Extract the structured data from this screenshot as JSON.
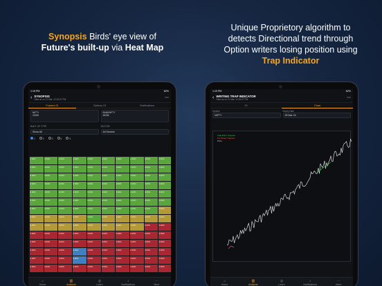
{
  "caption_left": {
    "w1": "Synopsis",
    "w2": "Birds' eye view of",
    "w3": "Future's built-up",
    "w4": "via",
    "w5": "Heat Map"
  },
  "caption_right": {
    "l1": "Unique Proprietory algorithm to",
    "l2": "detects Directional trend through",
    "l3": "Option writers losing position using",
    "l4": "Trap Indicator"
  },
  "status_bar": {
    "time": "1:19 PM",
    "date": "Fri 7 Mar",
    "battery": "62%"
  },
  "left_screen": {
    "title": "SYNOPSIS",
    "subtitle": "Data as on 21 Mar, 12:15:47 PM",
    "tabs": [
      {
        "label": "Futures OI",
        "active": true
      },
      {
        "label": "Options OI",
        "active": false
      },
      {
        "label": "Notifications",
        "active": false
      }
    ],
    "card1": {
      "name": "NIFTY",
      "sub": "22266"
    },
    "card2": {
      "name": "BANKNIFTY",
      "sub": "48256"
    },
    "filter_label": "BUILT UP TYPE",
    "filter2_label": "SECTOR",
    "filter_value": "Show All",
    "filter2_value": "All Sectors",
    "radios": [
      "1",
      "2",
      "3",
      "4",
      "5"
    ],
    "heatmap": [
      "g",
      "g",
      "g",
      "g",
      "g",
      "g",
      "g",
      "g",
      "g",
      "g",
      "g",
      "g",
      "g",
      "g",
      "g",
      "g",
      "g",
      "g",
      "g",
      "g",
      "g",
      "g",
      "g",
      "g",
      "g",
      "g",
      "g",
      "g",
      "g",
      "g",
      "g",
      "g",
      "g",
      "g",
      "g",
      "g",
      "g",
      "g",
      "g",
      "g",
      "g",
      "g",
      "g",
      "g",
      "g",
      "g",
      "g",
      "g",
      "g",
      "g",
      "g",
      "g",
      "g",
      "g",
      "g",
      "g",
      "g",
      "g",
      "g",
      "g",
      "g",
      "g",
      "g",
      "g",
      "g",
      "g",
      "g",
      "g",
      "g",
      "y",
      "y",
      "y",
      "y",
      "y",
      "g",
      "y",
      "y",
      "y",
      "y",
      "y",
      "y",
      "y",
      "y",
      "y",
      "y",
      "y",
      "y",
      "y",
      "r",
      "r",
      "r",
      "r",
      "r",
      "r",
      "r",
      "r",
      "r",
      "r",
      "r",
      "r",
      "r",
      "r",
      "r",
      "r",
      "r",
      "r",
      "r",
      "r",
      "r",
      "r",
      "r",
      "r",
      "r",
      "b",
      "r",
      "r",
      "r",
      "r",
      "r",
      "r",
      "r",
      "r",
      "r",
      "b",
      "r",
      "r",
      "r",
      "r",
      "r",
      "r",
      "r",
      "r",
      "r",
      "r",
      "r",
      "r",
      "r",
      "r",
      "r",
      "r"
    ],
    "cell_text": "0.00%"
  },
  "right_screen": {
    "title": "WRITING TRAP INDICATOR",
    "subtitle": "Data as on 21 Mar, 12:15:47 PM",
    "tabs": [
      {
        "label": "OI",
        "active": false
      },
      {
        "label": "Chart",
        "active": true
      }
    ],
    "field1_label": "Symbol",
    "field1_value": "NIFTY",
    "field2_label": "Expiry Date",
    "field2_value": "28 Mar 24",
    "legend": [
      "Call Writer Trapped",
      "Put Writer Trapped",
      "Price"
    ],
    "legend_colors": [
      "#2ecc40",
      "#ff4d4d",
      "#cccccc"
    ]
  },
  "nav_items": [
    {
      "label": "Home",
      "icon": "home-icon"
    },
    {
      "label": "Analysis",
      "icon": "analysis-icon"
    },
    {
      "label": "Learn",
      "icon": "learn-icon"
    },
    {
      "label": "Notifications",
      "icon": "bell-icon"
    },
    {
      "label": "More",
      "icon": "more-icon"
    }
  ],
  "nav_active": 1
}
